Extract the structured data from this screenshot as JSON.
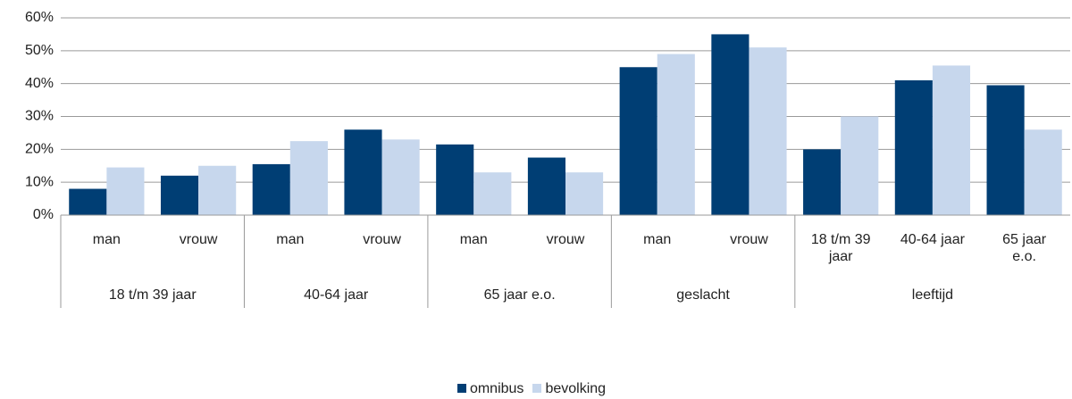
{
  "chart_data": {
    "type": "bar",
    "categories": [
      "man",
      "vrouw",
      "man",
      "vrouw",
      "man",
      "vrouw",
      "man",
      "vrouw",
      "18 t/m 39 jaar",
      "40-64 jaar",
      "65 jaar e.o."
    ],
    "groups": [
      {
        "name": "18 t/m 39 jaar",
        "size": 2
      },
      {
        "name": "40-64 jaar",
        "size": 2
      },
      {
        "name": "65 jaar e.o.",
        "size": 2
      },
      {
        "name": "geslacht",
        "size": 2
      },
      {
        "name": "leeftijd",
        "size": 3
      }
    ],
    "series": [
      {
        "name": "omnibus",
        "color": "#003e74",
        "values": [
          8,
          12,
          15.5,
          26,
          21.5,
          17.5,
          45,
          55,
          20,
          41,
          39.5
        ]
      },
      {
        "name": "bevolking",
        "color": "#c7d7ed",
        "values": [
          14.5,
          15,
          22.5,
          23,
          13,
          13,
          49,
          51,
          30,
          45.5,
          26
        ]
      }
    ],
    "ylim": [
      0,
      60
    ],
    "yticks": [
      {
        "value": 0,
        "label": "0%"
      },
      {
        "value": 10,
        "label": "10%"
      },
      {
        "value": 20,
        "label": "20%"
      },
      {
        "value": 30,
        "label": "30%"
      },
      {
        "value": 40,
        "label": "40%"
      },
      {
        "value": 50,
        "label": "50%"
      },
      {
        "value": 60,
        "label": "60%"
      }
    ],
    "grid": true,
    "legend": "bottom"
  }
}
